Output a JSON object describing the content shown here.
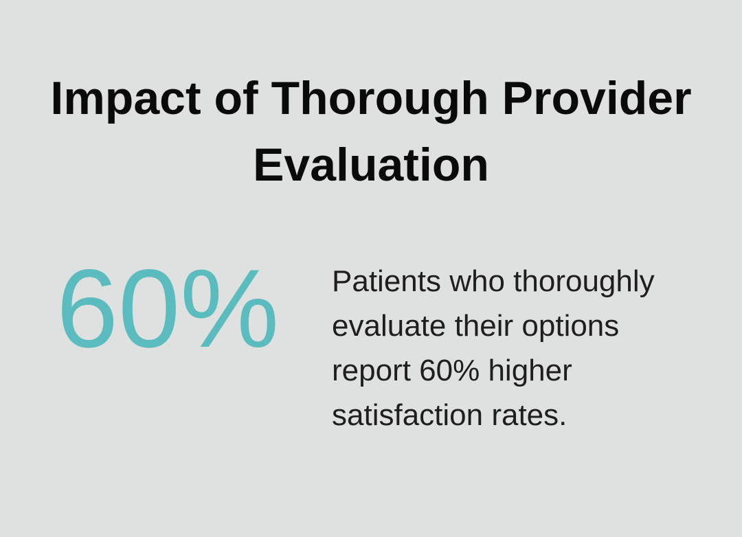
{
  "title": "Impact of Thorough Provider Evaluation",
  "stat": {
    "value": "60%",
    "color": "#5bbcbf",
    "description": "Patients who thoroughly evaluate their options report 60% higher satisfaction rates."
  },
  "colors": {
    "background": "#dfe1e0",
    "text": "#0a0a0a"
  }
}
